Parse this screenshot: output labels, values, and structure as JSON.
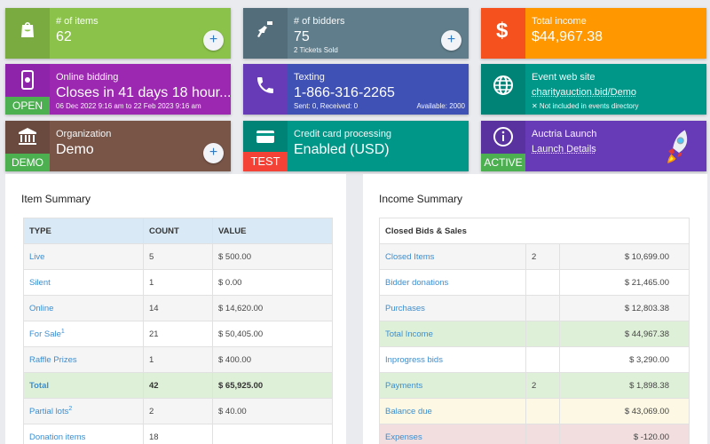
{
  "tiles": {
    "items": {
      "label": "# of items",
      "value": "62",
      "plus": "+",
      "color": "#8bc34a"
    },
    "bidders": {
      "label": "# of bidders",
      "value": "75",
      "sub": "2 Tickets Sold",
      "plus": "+",
      "color": "#607d8b"
    },
    "income": {
      "label": "Total income",
      "value": "$44,967.38",
      "color": "#ff9800"
    },
    "online_bidding": {
      "label": "Online bidding",
      "value": "Closes in 41 days 18 hour...",
      "sub": "06 Dec 2022 9:16 am to 22 Feb 2023 9:16 am",
      "badge": "OPEN",
      "color": "#9c27b0",
      "badge_color": "#4caf50"
    },
    "texting": {
      "label": "Texting",
      "value": "1-866-316-2265",
      "sub": "Sent: 0, Received: 0",
      "sub_right": "Available: 2000",
      "color": "#3f51b5"
    },
    "website": {
      "label": "Event web site",
      "link": "charityauction.bid/Demo",
      "sub": "✕ Not included in events directory",
      "color": "#009688"
    },
    "organization": {
      "label": "Organization",
      "value": "Demo",
      "badge": "DEMO",
      "plus": "+",
      "color": "#795548",
      "badge_color": "#4caf50"
    },
    "credit": {
      "label": "Credit card processing",
      "value": "Enabled (USD)",
      "badge": "TEST",
      "color": "#009688",
      "badge_color": "#f44336"
    },
    "launch": {
      "label": "Auctria Launch",
      "link": "Launch Details",
      "badge": "ACTIVE",
      "color": "#673ab7",
      "badge_color": "#4caf50"
    }
  },
  "item_summary": {
    "title": "Item Summary",
    "headers": [
      "TYPE",
      "COUNT",
      "VALUE"
    ],
    "rows": [
      {
        "type": "Live",
        "sup": "",
        "count": "5",
        "value": "$ 500.00"
      },
      {
        "type": "Silent",
        "sup": "",
        "count": "1",
        "value": "$ 0.00"
      },
      {
        "type": "Online",
        "sup": "",
        "count": "14",
        "value": "$ 14,620.00"
      },
      {
        "type": "For Sale",
        "sup": "1",
        "count": "21",
        "value": "$ 50,405.00"
      },
      {
        "type": "Raffle Prizes",
        "sup": "",
        "count": "1",
        "value": "$ 400.00"
      },
      {
        "type": "Total",
        "sup": "",
        "count": "42",
        "value": "$ 65,925.00"
      },
      {
        "type": "Partial lots",
        "sup": "2",
        "count": "2",
        "value": "$ 40.00"
      },
      {
        "type": "Donation items",
        "sup": "",
        "count": "18",
        "value": ""
      }
    ]
  },
  "income_summary": {
    "title": "Income Summary",
    "header": "Closed Bids & Sales",
    "rows": [
      {
        "label": "Closed Items",
        "count": "2",
        "value": "$ 10,699.00"
      },
      {
        "label": "Bidder donations",
        "count": "",
        "value": "$ 21,465.00"
      },
      {
        "label": "Purchases",
        "count": "",
        "value": "$ 12,803.38"
      },
      {
        "label": "Total Income",
        "count": "",
        "value": "$ 44,967.38"
      },
      {
        "label": "Inprogress bids",
        "count": "",
        "value": "$ 3,290.00"
      },
      {
        "label": "Payments",
        "count": "2",
        "value": "$ 1,898.38"
      },
      {
        "label": "Balance due",
        "count": "",
        "value": "$ 43,069.00"
      },
      {
        "label": "Expenses",
        "count": "",
        "value": "$ -120.00"
      }
    ]
  }
}
